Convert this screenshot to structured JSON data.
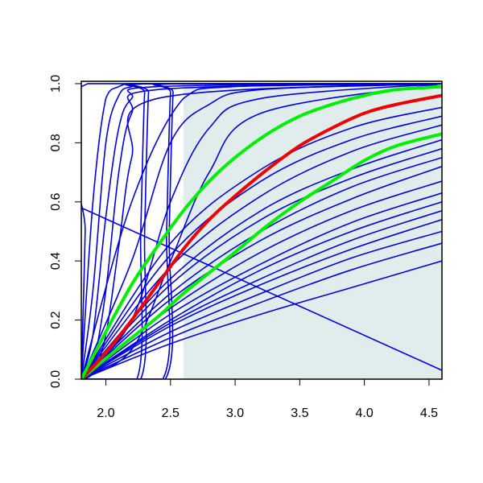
{
  "chart_data": {
    "type": "line",
    "xlim": [
      1.81,
      4.6
    ],
    "ylim": [
      0,
      1.008
    ],
    "xticks": [
      {
        "value": 2,
        "label": "2.0"
      },
      2.5,
      {
        "value": 3,
        "label": "3.0"
      },
      3.5,
      {
        "value": 4,
        "label": "4.0"
      },
      4.5
    ],
    "yticks": [
      {
        "value": 0,
        "label": "0.0"
      },
      0.2,
      0.4,
      0.6,
      0.8,
      {
        "value": 1,
        "label": "1.0"
      }
    ],
    "shade": {
      "xlim": [
        2.6,
        4.6
      ],
      "ylim": [
        0,
        1
      ],
      "color": "#e1eded"
    },
    "x": [
      1.81,
      2.5,
      3.2,
      3.9,
      4.6
    ],
    "series": [
      {
        "color": "#0000dd",
        "values": [
          0,
          0.12,
          0.22,
          0.31,
          0.4
        ]
      },
      {
        "color": "#0000dd",
        "values": [
          0,
          0.14,
          0.26,
          0.37,
          0.46
        ]
      },
      {
        "color": "#0000dd",
        "values": [
          0,
          0.16,
          0.29,
          0.41,
          0.5
        ]
      },
      {
        "color": "#0000dd",
        "values": [
          0,
          0.18,
          0.32,
          0.44,
          0.54
        ]
      },
      {
        "color": "#0000dd",
        "values": [
          0,
          0.19,
          0.34,
          0.47,
          0.57
        ]
      },
      {
        "color": "#0000dd",
        "values": [
          0,
          0.2,
          0.37,
          0.5,
          0.6
        ]
      },
      {
        "color": "#0000dd",
        "values": [
          0,
          0.22,
          0.39,
          0.53,
          0.63
        ]
      },
      {
        "color": "#0000dd",
        "values": [
          0,
          0.24,
          0.43,
          0.57,
          0.67
        ]
      },
      {
        "color": "#0000dd",
        "values": [
          0,
          0.27,
          0.47,
          0.61,
          0.72
        ]
      },
      {
        "color": "#0000dd",
        "values": [
          0,
          0.29,
          0.5,
          0.65,
          0.75
        ]
      },
      {
        "color": "#0000dd",
        "values": [
          0,
          0.32,
          0.54,
          0.68,
          0.78
        ]
      },
      {
        "color": "#0000dd",
        "values": [
          0,
          0.34,
          0.57,
          0.71,
          0.81
        ]
      },
      {
        "color": "#0000dd",
        "values": [
          0,
          0.38,
          0.62,
          0.77,
          0.86
        ]
      },
      {
        "color": "#0000dd",
        "values": [
          0,
          0.42,
          0.67,
          0.81,
          0.89
        ]
      },
      {
        "color": "#0000dd",
        "values": [
          0,
          0.46,
          0.71,
          0.85,
          0.92
        ]
      },
      {
        "color": "#0000dd",
        "x": [
          1.81,
          1.84,
          1.86,
          4.6
        ],
        "values": [
          0,
          0.5,
          1,
          1
        ]
      },
      {
        "color": "#0000dd",
        "x": [
          1.81,
          1.9,
          2.0,
          2.1,
          2.2,
          2.4,
          4.6
        ],
        "values": [
          0,
          0.6,
          0.95,
          0.99,
          1,
          1,
          1
        ]
      },
      {
        "color": "#0000dd",
        "x": [
          1.81,
          1.9,
          2.0,
          2.1,
          2.2,
          2.4,
          4.6
        ],
        "values": [
          0,
          0.3,
          0.8,
          0.96,
          0.99,
          1,
          1
        ]
      },
      {
        "color": "#0000dd",
        "x": [
          1.81,
          1.9,
          2.0,
          2.1,
          2.2,
          2.4,
          4.6
        ],
        "values": [
          0,
          0.15,
          0.55,
          0.85,
          0.95,
          0.99,
          1
        ]
      },
      {
        "color": "#0000dd",
        "x": [
          1.81,
          1.9,
          2.0,
          2.1,
          2.2,
          2.4,
          4.6
        ],
        "values": [
          0,
          0.05,
          0.3,
          0.7,
          0.9,
          0.98,
          1
        ]
      },
      {
        "color": "#0000dd",
        "x": [
          1.81,
          1.9,
          2.0,
          2.1,
          2.2,
          2.4,
          4.6
        ],
        "values": [
          0,
          0.02,
          0.15,
          0.45,
          0.75,
          0.95,
          1
        ]
      },
      {
        "color": "#0000dd",
        "x": [
          1.81,
          2.2,
          2.5,
          2.8,
          3.2,
          4.6
        ],
        "values": [
          0,
          0.4,
          0.8,
          0.93,
          0.98,
          1
        ]
      },
      {
        "color": "#0000dd",
        "x": [
          1.81,
          2.2,
          2.5,
          2.8,
          3.2,
          4.6
        ],
        "values": [
          0,
          0.2,
          0.6,
          0.85,
          0.95,
          1
        ]
      },
      {
        "color": "#0000dd",
        "x": [
          1.81,
          2.2,
          2.5,
          2.8,
          3.2,
          4.6
        ],
        "values": [
          0,
          0.1,
          0.4,
          0.7,
          0.9,
          1
        ]
      },
      {
        "color": "#0000dd",
        "x": [
          1.81,
          2.2,
          2.6,
          3.0,
          4.6
        ],
        "values": [
          0,
          0.6,
          0.95,
          0.99,
          1
        ]
      },
      {
        "color": "#0000dd",
        "x": [
          1.81,
          2.24,
          2.27,
          2.3,
          2.33,
          4.6
        ],
        "values": [
          0,
          0,
          0.5,
          0.97,
          1,
          1
        ]
      },
      {
        "color": "#0000dd",
        "x": [
          1.81,
          2.27,
          2.3,
          2.33,
          2.36,
          4.6
        ],
        "values": [
          0,
          0,
          0.5,
          0.97,
          1,
          1
        ]
      },
      {
        "color": "#0000dd",
        "x": [
          1.81,
          2.44,
          2.47,
          2.5,
          2.53,
          4.6
        ],
        "values": [
          0,
          0,
          0.5,
          0.97,
          1,
          1
        ]
      },
      {
        "color": "#0000dd",
        "x": [
          1.81,
          2.46,
          2.49,
          2.52,
          2.55,
          4.6
        ],
        "values": [
          0,
          0,
          0.5,
          0.97,
          1,
          1
        ]
      },
      {
        "color": "#0000dd",
        "x": [
          1.81,
          4.6
        ],
        "values": [
          0.58,
          0.03
        ]
      },
      {
        "color": "#00ee00",
        "width": 4,
        "x": [
          1.81,
          2.0,
          2.2,
          2.4,
          2.6,
          2.8,
          3.0,
          3.25,
          3.5,
          3.75,
          4.0,
          4.25,
          4.6
        ],
        "values": [
          0,
          0.07,
          0.14,
          0.21,
          0.29,
          0.36,
          0.43,
          0.52,
          0.6,
          0.67,
          0.74,
          0.79,
          0.83
        ]
      },
      {
        "color": "#ee0000",
        "width": 4,
        "x": [
          1.81,
          2.0,
          2.2,
          2.4,
          2.6,
          2.8,
          3.0,
          3.25,
          3.5,
          3.75,
          4.0,
          4.25,
          4.6
        ],
        "values": [
          0,
          0.09,
          0.2,
          0.32,
          0.44,
          0.54,
          0.62,
          0.71,
          0.79,
          0.85,
          0.9,
          0.93,
          0.96
        ]
      },
      {
        "color": "#00ee00",
        "width": 4,
        "x": [
          1.81,
          2.0,
          2.2,
          2.4,
          2.6,
          2.8,
          3.0,
          3.25,
          3.5,
          3.75,
          4.0,
          4.25,
          4.6
        ],
        "values": [
          0,
          0.16,
          0.32,
          0.45,
          0.57,
          0.67,
          0.75,
          0.83,
          0.89,
          0.93,
          0.96,
          0.98,
          0.99
        ]
      }
    ]
  }
}
